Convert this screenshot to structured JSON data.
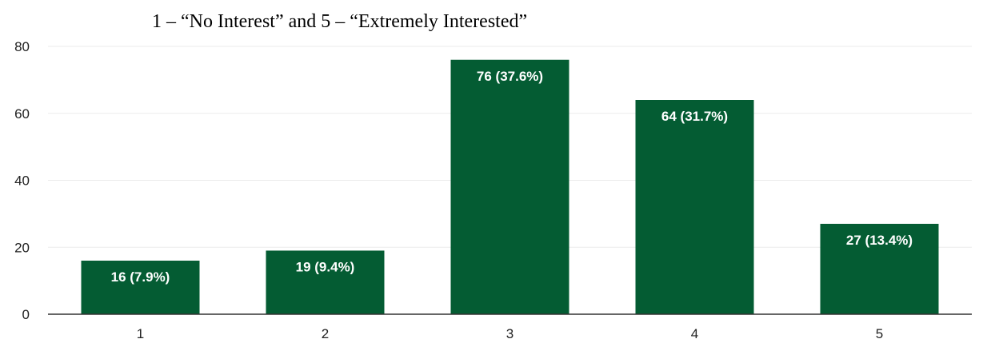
{
  "chart_data": {
    "type": "bar",
    "title": "1 – “No Interest” and 5 – “Extremely Interested”",
    "categories": [
      "1",
      "2",
      "3",
      "4",
      "5"
    ],
    "values": [
      16,
      19,
      76,
      64,
      27
    ],
    "data_labels": [
      "16 (7.9%)",
      "19 (9.4%)",
      "76 (37.6%)",
      "64 (31.7%)",
      "27 (13.4%)"
    ],
    "ylim": [
      0,
      80
    ],
    "yticks": [
      0,
      20,
      40,
      60,
      80
    ],
    "grid": true,
    "legend": "none",
    "colors": {
      "bar": "#045c33",
      "grid": "#ebebeb",
      "axis": "#333333"
    }
  }
}
